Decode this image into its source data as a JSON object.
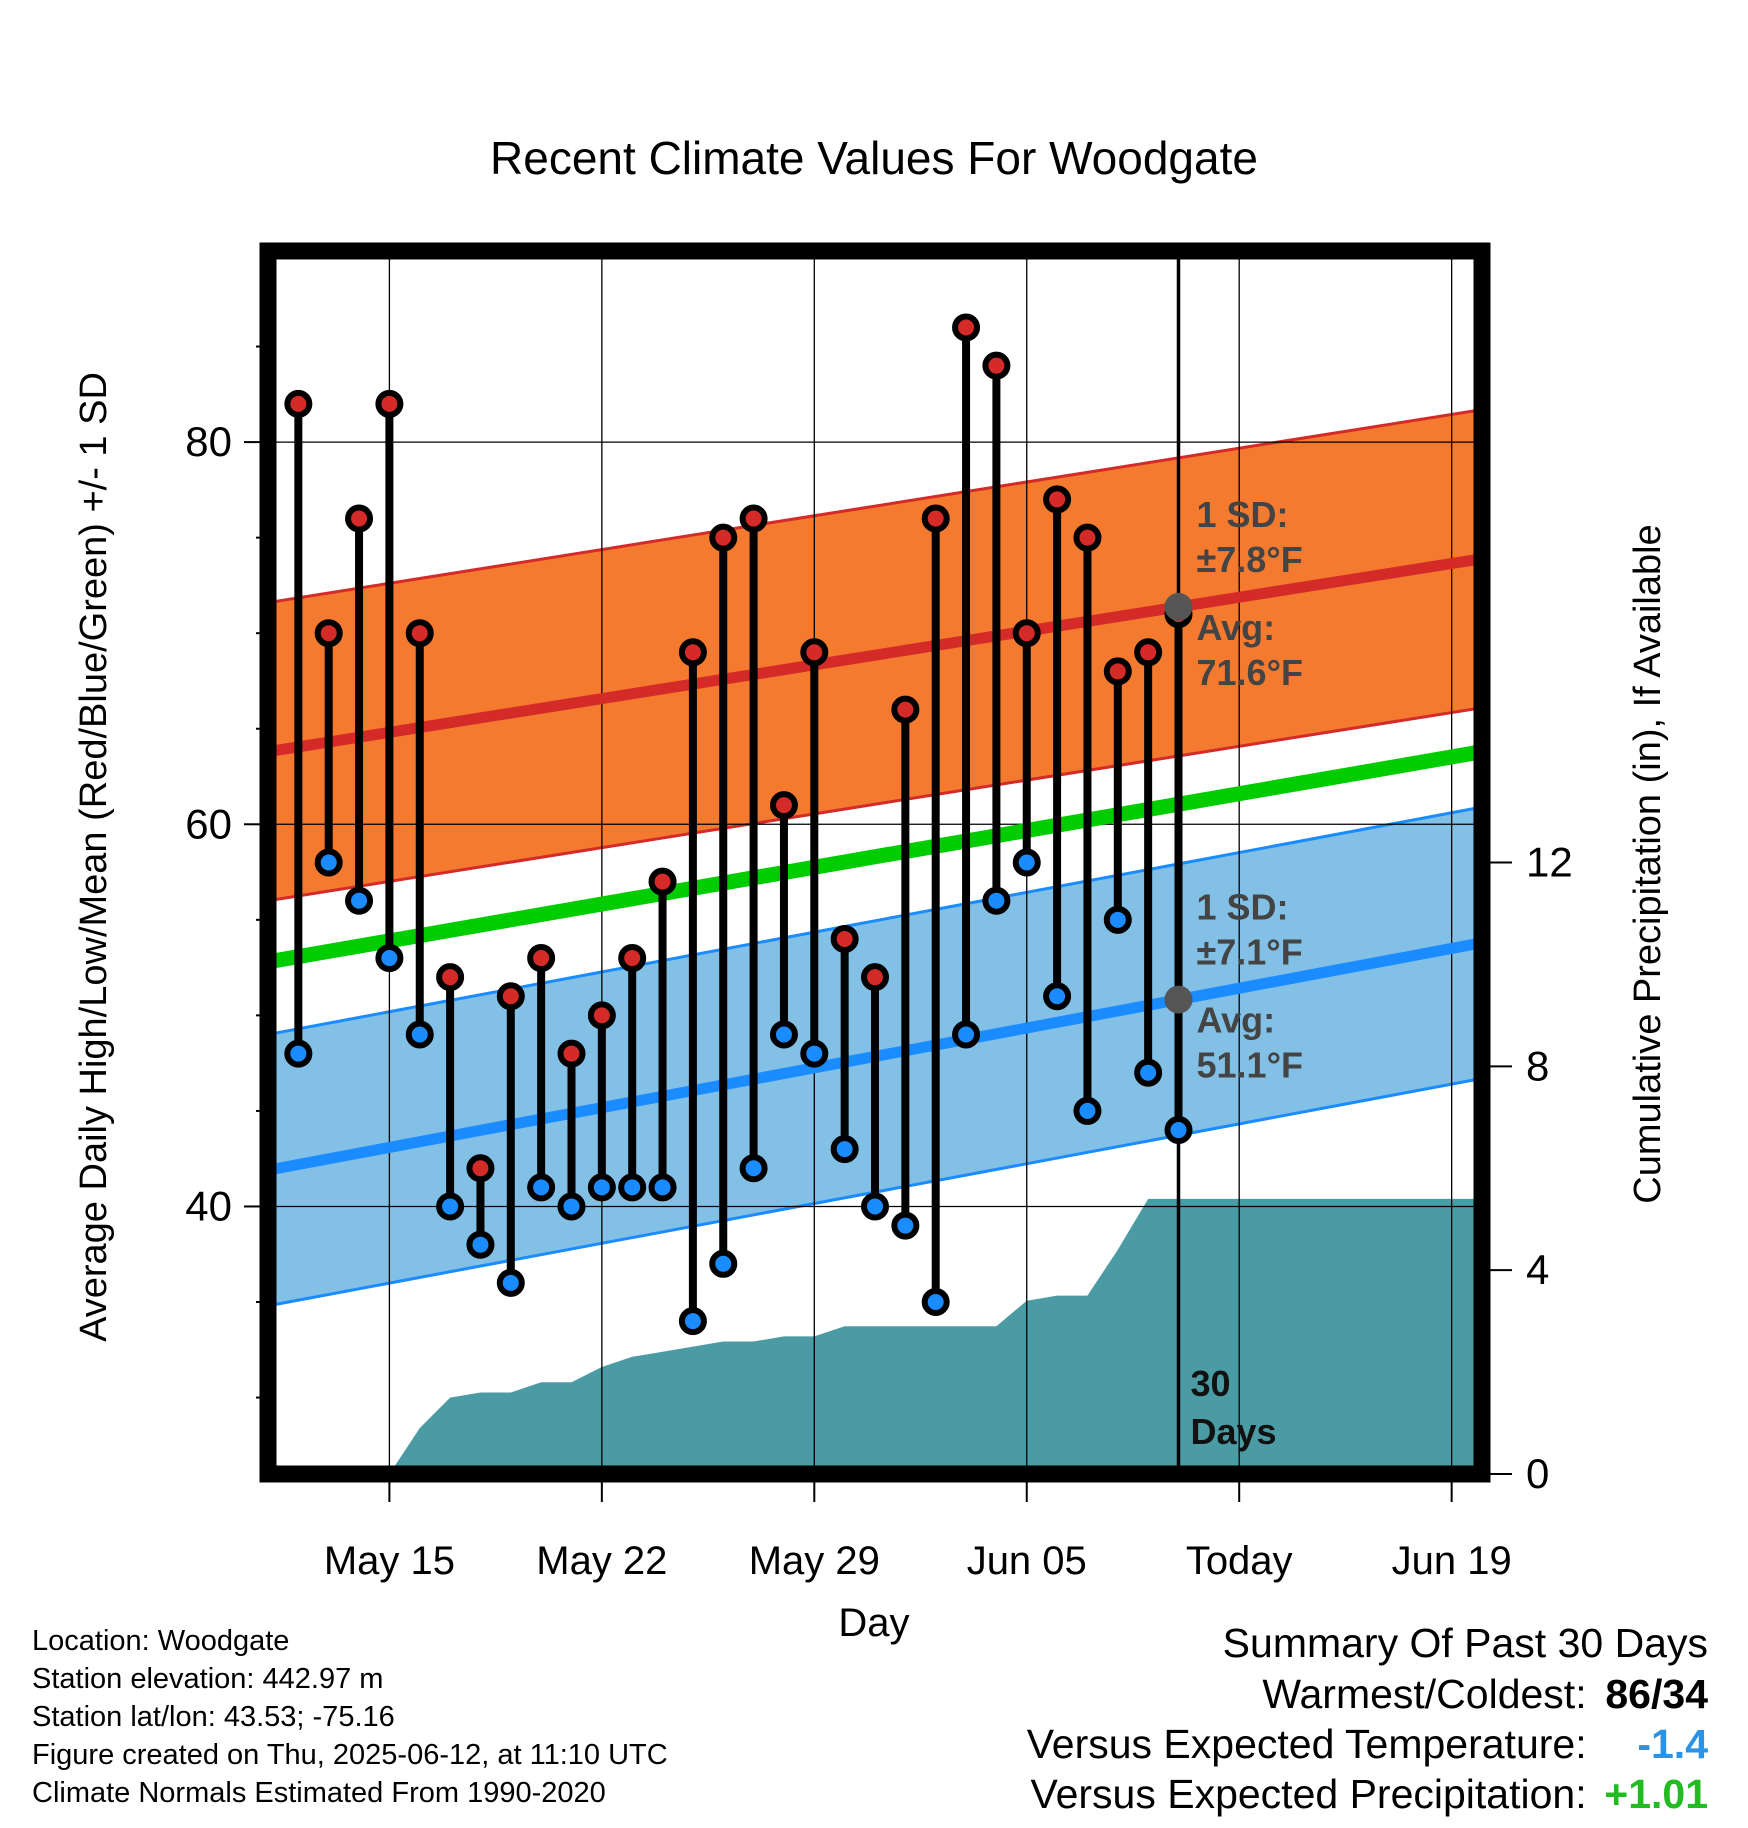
{
  "chart_data": {
    "type": "line",
    "title": "Recent Climate Values For Woodgate",
    "xlabel": "Day",
    "ylabel": "Average Daily High/Low/Mean (Red/Blue/Green) +/- 1 SD",
    "y2label": "Cumulative Precipitation (in), If Available",
    "x_tick_labels": [
      "May 15",
      "May 22",
      "May 29",
      "Jun 05",
      "Today",
      "Jun 19"
    ],
    "y_ticks": [
      40,
      60,
      80
    ],
    "y_range": [
      26,
      90
    ],
    "y2_ticks": [
      0,
      4,
      8,
      12
    ],
    "y2_range": [
      0,
      24
    ],
    "day_range": [
      0,
      40
    ],
    "today_day": 30,
    "days": [
      1,
      2,
      3,
      4,
      5,
      6,
      7,
      8,
      9,
      10,
      11,
      12,
      13,
      14,
      15,
      16,
      17,
      18,
      19,
      20,
      21,
      22,
      23,
      24,
      25,
      26,
      27,
      28,
      29,
      30
    ],
    "highs": [
      82,
      70,
      76,
      82,
      70,
      52,
      42,
      51,
      53,
      48,
      50,
      53,
      57,
      69,
      75,
      76,
      61,
      69,
      54,
      52,
      66,
      76,
      86,
      84,
      70,
      77,
      75,
      68,
      69,
      71
    ],
    "lows": [
      48,
      58,
      56,
      53,
      49,
      40,
      38,
      36,
      41,
      40,
      41,
      41,
      41,
      34,
      37,
      42,
      49,
      48,
      43,
      40,
      39,
      35,
      49,
      56,
      58,
      51,
      45,
      55,
      47,
      44
    ],
    "normal_high": {
      "start": 63.8,
      "end": 73.9,
      "sd": 7.8
    },
    "normal_low": {
      "start": 41.9,
      "end": 53.8,
      "sd": 7.1
    },
    "normal_mean": {
      "start": 52.8,
      "end": 63.8
    },
    "precip_x": [
      4,
      5,
      6,
      7,
      8,
      9,
      10,
      11,
      12,
      13,
      14,
      15,
      16,
      17,
      18,
      19,
      20,
      21,
      22,
      23,
      24,
      25,
      26,
      27,
      28,
      29,
      30,
      40
    ],
    "precip_cum": [
      0,
      0.9,
      1.5,
      1.6,
      1.6,
      1.8,
      1.8,
      2.1,
      2.3,
      2.4,
      2.5,
      2.6,
      2.6,
      2.7,
      2.7,
      2.9,
      2.9,
      2.9,
      2.9,
      2.9,
      2.9,
      3.4,
      3.5,
      3.5,
      4.4,
      5.4,
      5.4,
      5.4
    ],
    "annotations": {
      "high_sd_label": "1 SD:",
      "high_sd_value": "±7.8°F",
      "high_avg_label": "Avg:",
      "high_avg_value": "71.6°F",
      "low_sd_label": "1 SD:",
      "low_sd_value": "±7.1°F",
      "low_avg_label": "Avg:",
      "low_avg_value": "51.1°F",
      "window_count": "30",
      "window_unit": "Days"
    },
    "colors": {
      "high_band": "#f47a30",
      "high_line": "#d42a28",
      "low_band": "#82c0e6",
      "low_line": "#1a8cff",
      "mean_line": "#00cc00",
      "precip_fill": "#4a9ba3",
      "high_marker": "#d42a28",
      "low_marker": "#1a8cff",
      "avg_marker": "#555555",
      "annotation_text": "#444444"
    }
  },
  "info": {
    "location": "Location: Woodgate",
    "elevation": "Station elevation: 442.97 m",
    "latlon": "Station lat/lon: 43.53; -75.16",
    "created": "Figure created on Thu, 2025-06-12, at 11:10 UTC",
    "normals": "Climate Normals Estimated From 1990-2020"
  },
  "summary": {
    "title": "Summary Of Past 30 Days",
    "warm_cold_label": "Warmest/Coldest:",
    "warm_value": "86",
    "slash": "/",
    "cold_value": "34",
    "temp_label": "Versus Expected Temperature:",
    "temp_value": "-1.4",
    "temp_color": "#2a93e6",
    "precip_label": "Versus Expected Precipitation:",
    "precip_value": "+1.01",
    "precip_color": "#22bb22"
  }
}
